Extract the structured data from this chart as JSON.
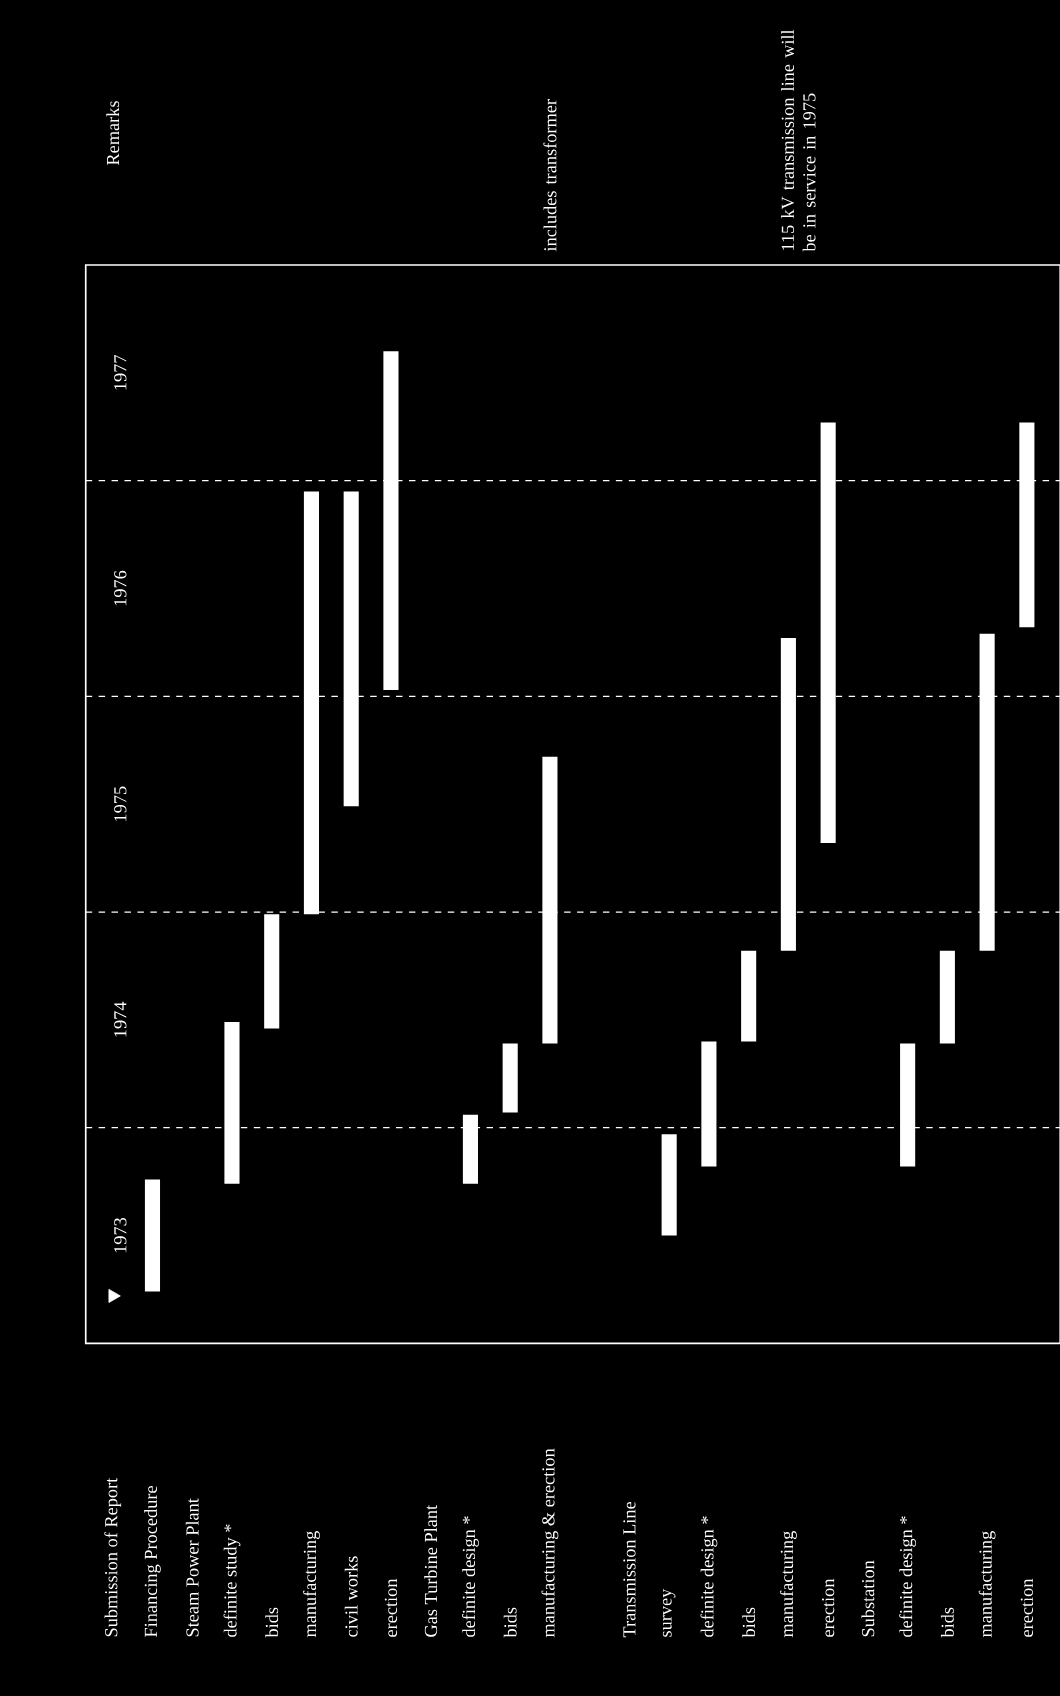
{
  "chart_data": {
    "type": "bar",
    "categories": [
      "Submission of Report",
      "Financing Procedure",
      "Steam Power Plant",
      "definite study *",
      "bids",
      "manufacturing",
      "civil works",
      "erection",
      "Gas Turbine Plant",
      "definite design *",
      "bids",
      "manufacturing & erection",
      null,
      "Transmission Line",
      "survey",
      "definite design *",
      "bids",
      "manufacturing",
      "erection",
      "Substation",
      "definite design *",
      "bids",
      "manufacturing",
      "erection"
    ],
    "series": [
      {
        "color": "#ffffff",
        "base": [
          null,
          1973.24,
          null,
          1973.74,
          1974.46,
          1974.99,
          1975.49,
          1976.03,
          null,
          1973.74,
          1974.07,
          1974.39,
          null,
          null,
          1973.5,
          1973.82,
          1974.4,
          1974.82,
          1975.32,
          null,
          1973.82,
          1974.39,
          1974.82,
          1976.32
        ],
        "values": [
          null,
          0.52,
          null,
          0.75,
          0.53,
          1.96,
          1.46,
          1.57,
          null,
          0.32,
          0.32,
          1.33,
          null,
          null,
          0.47,
          0.58,
          0.42,
          1.45,
          1.95,
          null,
          0.57,
          0.43,
          1.47,
          0.95
        ]
      },
      {
        "type": "scatter",
        "color": "#ffffff",
        "marker": "triangle",
        "values": [
          1973.22,
          null,
          null,
          null,
          null,
          null,
          null,
          null,
          null,
          null,
          null,
          null,
          null,
          null,
          null,
          null,
          null,
          null,
          null,
          null,
          null,
          null,
          null,
          null
        ]
      }
    ],
    "ylim": [
      1973,
      1978
    ],
    "yticks": [
      {
        "value": 1973.5,
        "label": "1973"
      },
      {
        "value": 1974.5,
        "label": "1974"
      },
      {
        "value": 1975.5,
        "label": "1975"
      },
      {
        "value": 1976.5,
        "label": "1976"
      },
      {
        "value": 1977.5,
        "label": "1977"
      }
    ],
    "ref_lines": [
      {
        "axis": "y",
        "value": 1974,
        "line_style": "dashed",
        "color": "#ffffff"
      },
      {
        "axis": "y",
        "value": 1975,
        "line_style": "dashed",
        "color": "#ffffff"
      },
      {
        "axis": "y",
        "value": 1976,
        "line_style": "dashed",
        "color": "#ffffff"
      },
      {
        "axis": "y",
        "value": 1977,
        "line_style": "dashed",
        "color": "#ffffff"
      }
    ],
    "annotations": [
      "Remarks",
      "includes transformer",
      "115 kV transmission line will be in service in 1975"
    ]
  }
}
